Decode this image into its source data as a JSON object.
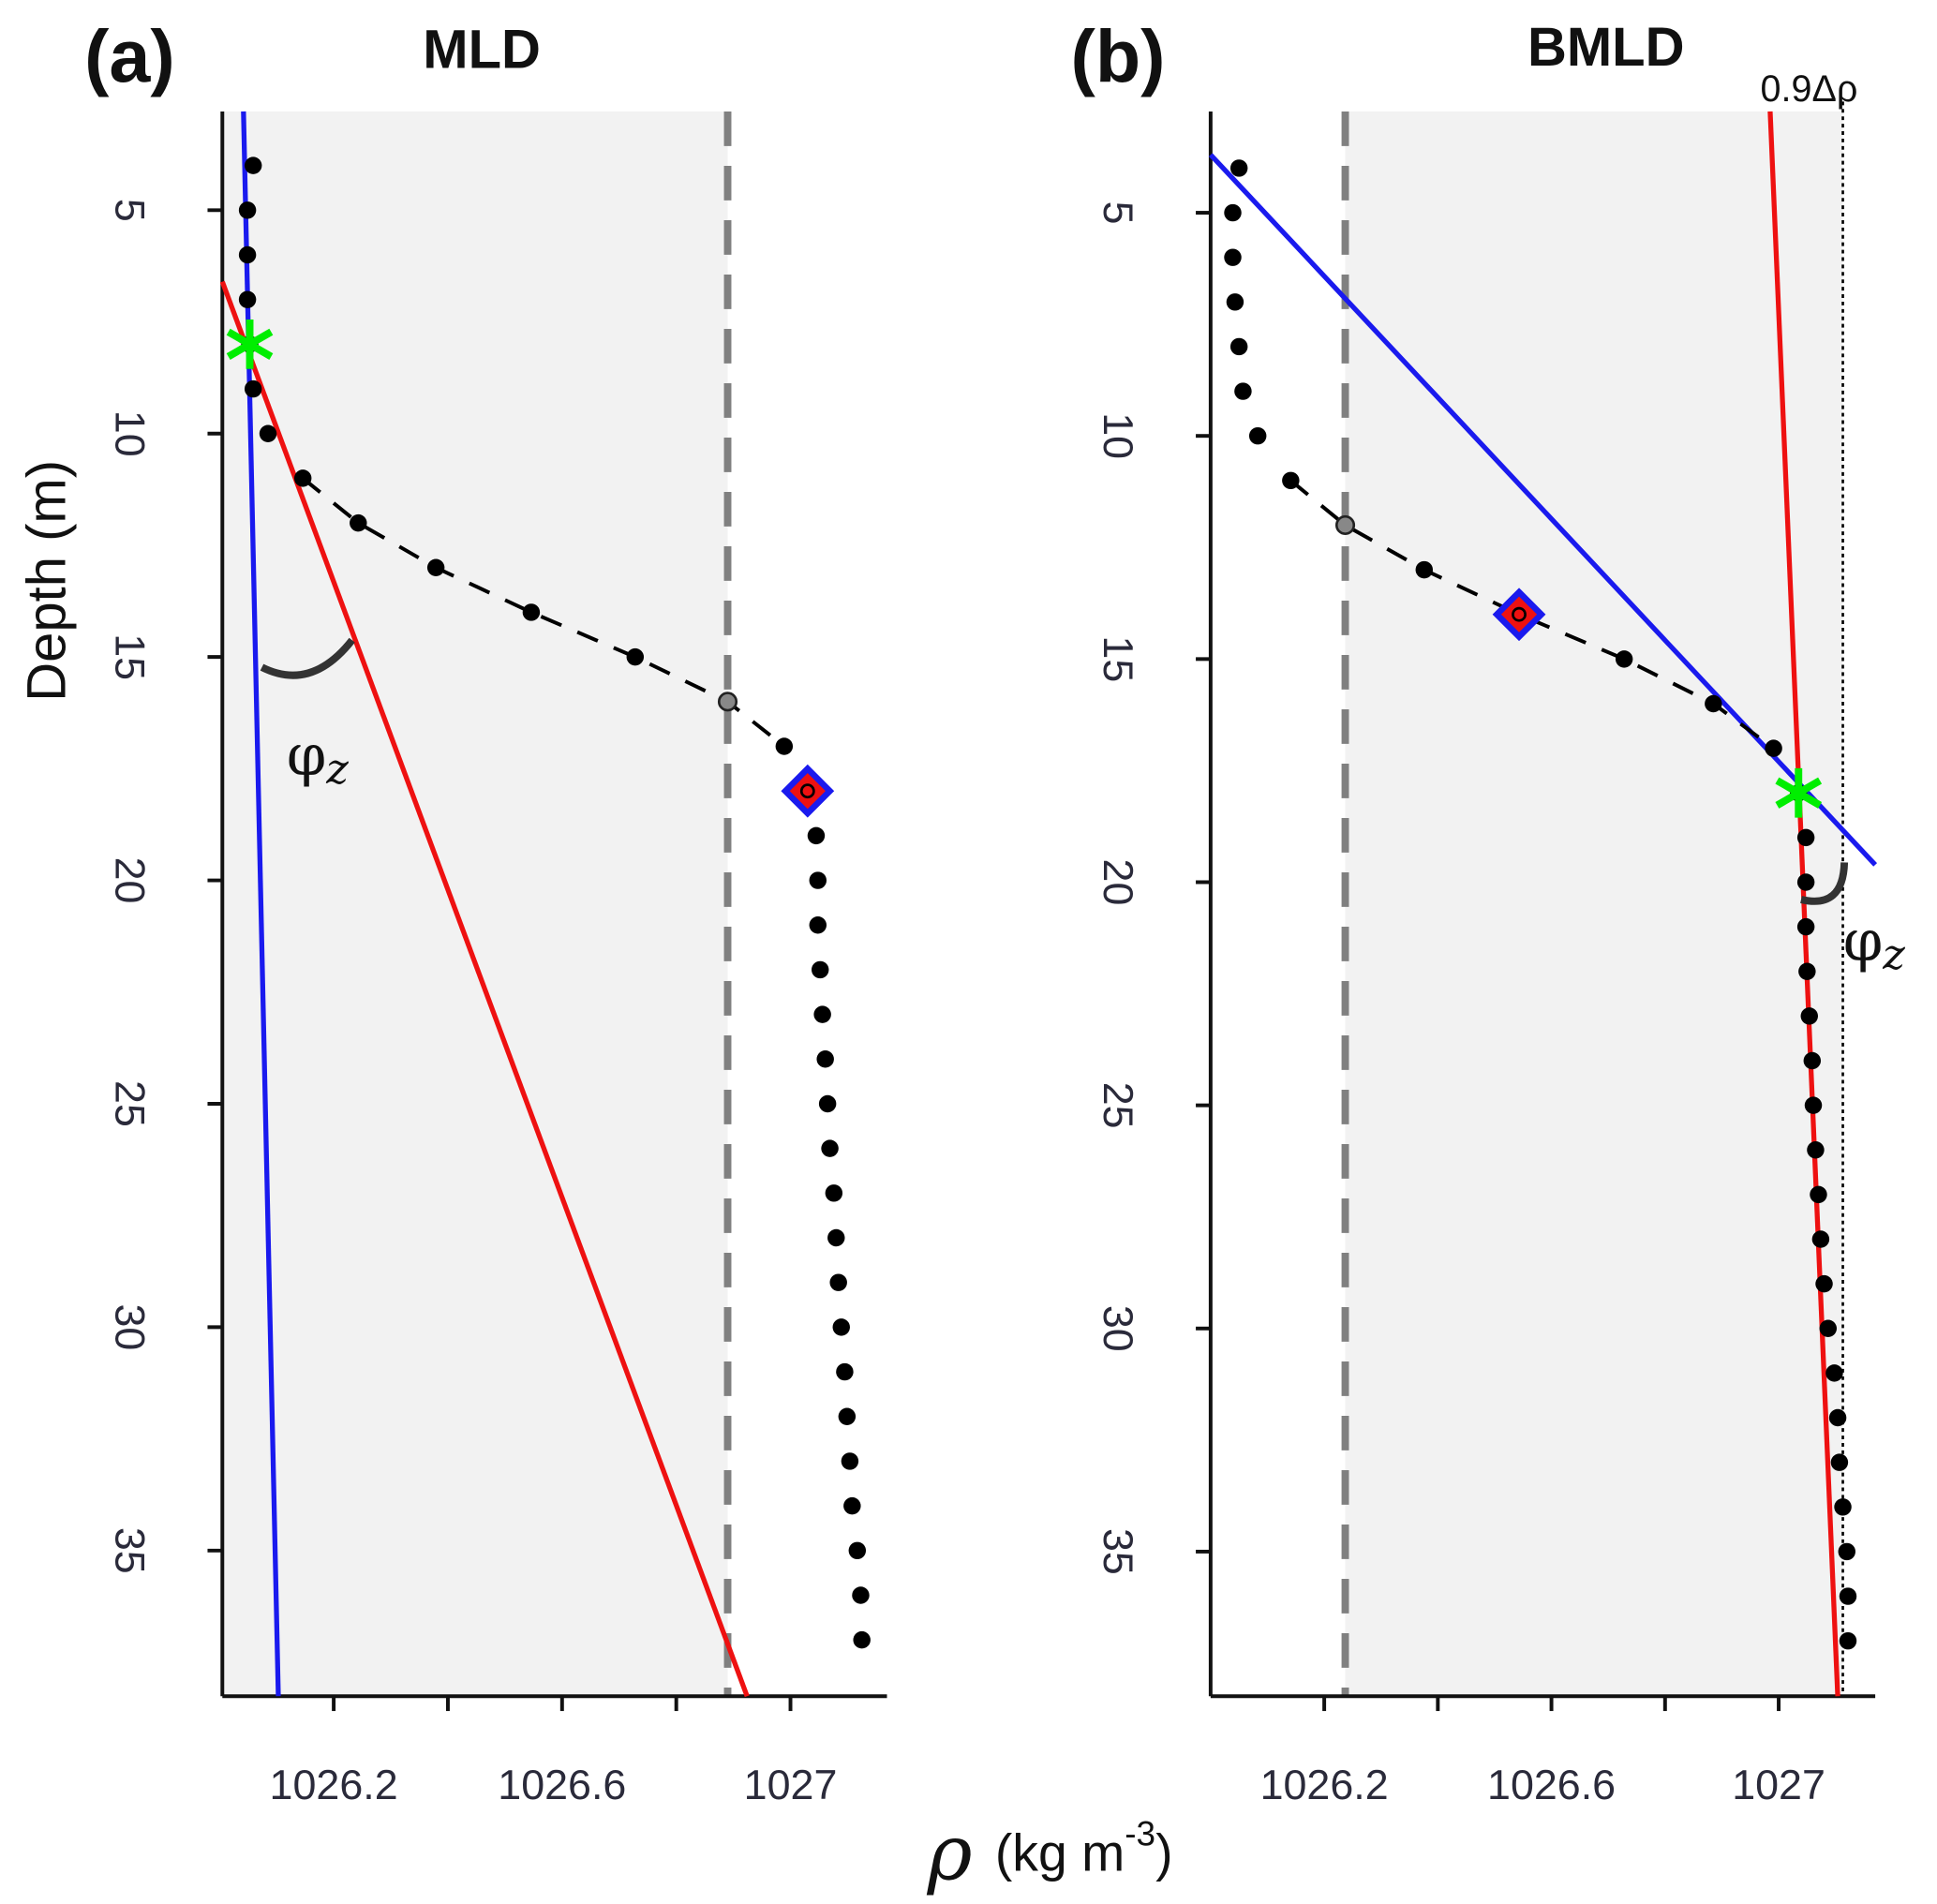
{
  "figure": {
    "ylabel": "Depth (m)",
    "xlabel_symbol": "ρ",
    "xlabel_units": "(kg m",
    "xlabel_exponent": "-3",
    "xlabel_close": ")",
    "angle_symbol": "φ",
    "angle_subscript": "z"
  },
  "chart_data": [
    {
      "type": "scatter",
      "panel_label": "(a)",
      "title": "MLD",
      "xlim": [
        1026.005,
        1027.169
      ],
      "ylim": [
        2.79,
        38.26
      ],
      "y_inverted": true,
      "xticks": [
        1026.2,
        1026.6,
        1027.0
      ],
      "xminor_ticks": [
        1026.4,
        1026.8
      ],
      "yticks": [
        5,
        10,
        15,
        20,
        25,
        30,
        35
      ],
      "shade": [
        1026.005,
        1026.89
      ],
      "shade_color": "#f2f2f2",
      "x": [
        1026.059,
        1026.049,
        1026.049,
        1026.049,
        1026.053,
        1026.059,
        1026.085,
        1026.146,
        1026.243,
        1026.379,
        1026.546,
        1026.728,
        1026.89,
        1026.989,
        1027.03,
        1027.045,
        1027.048,
        1027.048,
        1027.052,
        1027.056,
        1027.061,
        1027.065,
        1027.069,
        1027.076,
        1027.08,
        1027.084,
        1027.089,
        1027.095,
        1027.099,
        1027.104,
        1027.108,
        1027.117,
        1027.123,
        1027.125
      ],
      "y": [
        4,
        5,
        6,
        7,
        8,
        9,
        10,
        11,
        12,
        13,
        14,
        15,
        16,
        17,
        18,
        19,
        20,
        21,
        22,
        23,
        24,
        25,
        26,
        27,
        28,
        29,
        30,
        31,
        32,
        33,
        34,
        35,
        36,
        37
      ],
      "point_color": "#000000",
      "connector_range": [
        11,
        17
      ],
      "vlines": [
        {
          "x": 1026.89,
          "style": "dashed",
          "color": "#808080"
        }
      ],
      "lines": [
        {
          "color": "#ee1111",
          "x": [
            1026.005,
            1026.924
          ],
          "y": [
            6.6,
            38.26
          ]
        },
        {
          "color": "#1a1aee",
          "x": [
            1026.042,
            1026.103
          ],
          "y": [
            2.79,
            38.26
          ]
        }
      ],
      "threshold_point": {
        "x": 1026.89,
        "y": 16
      },
      "star": {
        "x": 1026.053,
        "y": 8,
        "color": "#00ee00"
      },
      "diamond": {
        "x": 1027.03,
        "y": 18,
        "color": "#1a1aee",
        "fill": "#ee1111"
      }
    },
    {
      "type": "scatter",
      "panel_label": "(b)",
      "title": "BMLD",
      "xlim": [
        1026.0,
        1027.17
      ],
      "ylim": [
        2.73,
        38.24
      ],
      "y_inverted": true,
      "xticks": [
        1026.2,
        1026.6,
        1027.0
      ],
      "xminor_ticks": [
        1026.4,
        1026.8
      ],
      "yticks": [
        5,
        10,
        15,
        20,
        25,
        30,
        35
      ],
      "shade": [
        1026.237,
        1027.113
      ],
      "shade_color": "#f2f2f2",
      "x": [
        1026.05,
        1026.039,
        1026.039,
        1026.043,
        1026.05,
        1026.057,
        1026.083,
        1026.141,
        1026.237,
        1026.376,
        1026.543,
        1026.728,
        1026.885,
        1026.991,
        1027.035,
        1027.048,
        1027.048,
        1027.048,
        1027.05,
        1027.054,
        1027.059,
        1027.061,
        1027.065,
        1027.07,
        1027.074,
        1027.08,
        1027.087,
        1027.098,
        1027.104,
        1027.107,
        1027.113,
        1027.12,
        1027.122,
        1027.122
      ],
      "y": [
        4,
        5,
        6,
        7,
        8,
        9,
        10,
        11,
        12,
        13,
        14,
        15,
        16,
        17,
        18,
        19,
        20,
        21,
        22,
        23,
        24,
        25,
        26,
        27,
        28,
        29,
        30,
        31,
        32,
        33,
        34,
        35,
        36,
        37
      ],
      "point_color": "#000000",
      "connector_range": [
        11,
        17
      ],
      "vlines": [
        {
          "x": 1026.237,
          "style": "dashed",
          "color": "#808080"
        },
        {
          "x": 1027.113,
          "style": "dotted",
          "color": "#000000",
          "label": "0.9Δρ"
        }
      ],
      "lines": [
        {
          "color": "#1a1aee",
          "x": [
            1026.0,
            1027.17
          ],
          "y": [
            3.7,
            19.61
          ]
        },
        {
          "color": "#ee1111",
          "x": [
            1026.985,
            1027.104
          ],
          "y": [
            2.73,
            38.24
          ]
        }
      ],
      "threshold_point": {
        "x": 1026.237,
        "y": 12
      },
      "star": {
        "x": 1027.035,
        "y": 18,
        "color": "#00ee00"
      },
      "diamond": {
        "x": 1026.543,
        "y": 14,
        "color": "#1a1aee",
        "fill": "#ee1111"
      }
    }
  ]
}
